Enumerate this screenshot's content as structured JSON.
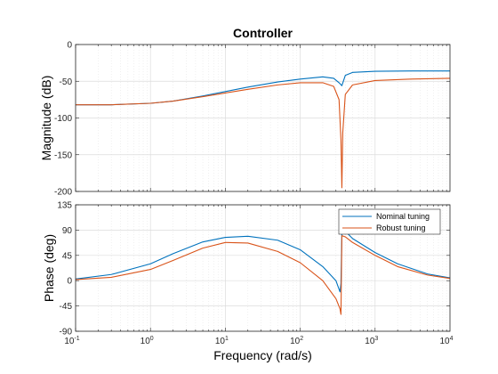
{
  "chart_data": [
    {
      "type": "line",
      "title": "Controller",
      "xlabel": "",
      "ylabel": "Magnitude (dB)",
      "xscale": "log",
      "xlim": [
        0.1,
        10000
      ],
      "ylim": [
        -200,
        0
      ],
      "yticks": [
        "0",
        "-50",
        "-100",
        "-150",
        "-200"
      ],
      "grid": true,
      "series": [
        {
          "color": "#0072BD",
          "x": [
            0.1,
            0.3,
            1,
            2,
            5,
            10,
            20,
            50,
            100,
            200,
            280,
            330,
            360,
            400,
            500,
            1000,
            3000,
            10000
          ],
          "y": [
            -82,
            -82,
            -80,
            -77,
            -70,
            -64,
            -58,
            -51,
            -47,
            -44,
            -46,
            -52,
            -56,
            -42,
            -38,
            -36.5,
            -36,
            -36
          ]
        },
        {
          "color": "#D95319",
          "x": [
            0.1,
            0.3,
            1,
            2,
            5,
            10,
            20,
            50,
            100,
            200,
            280,
            330,
            350,
            360,
            370,
            400,
            500,
            1000,
            3000,
            10000
          ],
          "y": [
            -82,
            -82,
            -80,
            -77,
            -71,
            -66,
            -61,
            -55,
            -52,
            -52,
            -57,
            -75,
            -130,
            -195,
            -120,
            -68,
            -55,
            -49,
            -47,
            -46
          ]
        }
      ]
    },
    {
      "type": "line",
      "title": "",
      "xlabel": "Frequency  (rad/s)",
      "ylabel": "Phase (deg)",
      "xscale": "log",
      "xlim": [
        0.1,
        10000
      ],
      "ylim": [
        -90,
        135
      ],
      "xticks": [
        "10-1",
        "100",
        "101",
        "102",
        "103",
        "104"
      ],
      "yticks": [
        "135",
        "90",
        "45",
        "0",
        "-45",
        "-90"
      ],
      "grid": true,
      "legend": "top-right",
      "series": [
        {
          "name": "Nominal tuning",
          "color": "#0072BD",
          "x": [
            0.1,
            0.3,
            1,
            2,
            5,
            10,
            20,
            50,
            100,
            200,
            300,
            340,
            350,
            360,
            400,
            500,
            1000,
            2000,
            5000,
            10000
          ],
          "y": [
            3,
            11,
            30,
            48,
            69,
            77,
            79,
            72,
            55,
            25,
            0,
            -20,
            -5,
            85,
            88,
            75,
            50,
            30,
            12,
            5
          ]
        },
        {
          "name": "Robust tuning",
          "color": "#D95319",
          "x": [
            0.1,
            0.3,
            1,
            2,
            5,
            10,
            20,
            50,
            100,
            200,
            300,
            340,
            350,
            360,
            400,
            500,
            1000,
            2000,
            5000,
            10000
          ],
          "y": [
            2,
            6,
            20,
            36,
            58,
            68,
            67,
            52,
            32,
            0,
            -32,
            -50,
            -60,
            80,
            78,
            68,
            45,
            25,
            10,
            4
          ]
        }
      ]
    }
  ]
}
